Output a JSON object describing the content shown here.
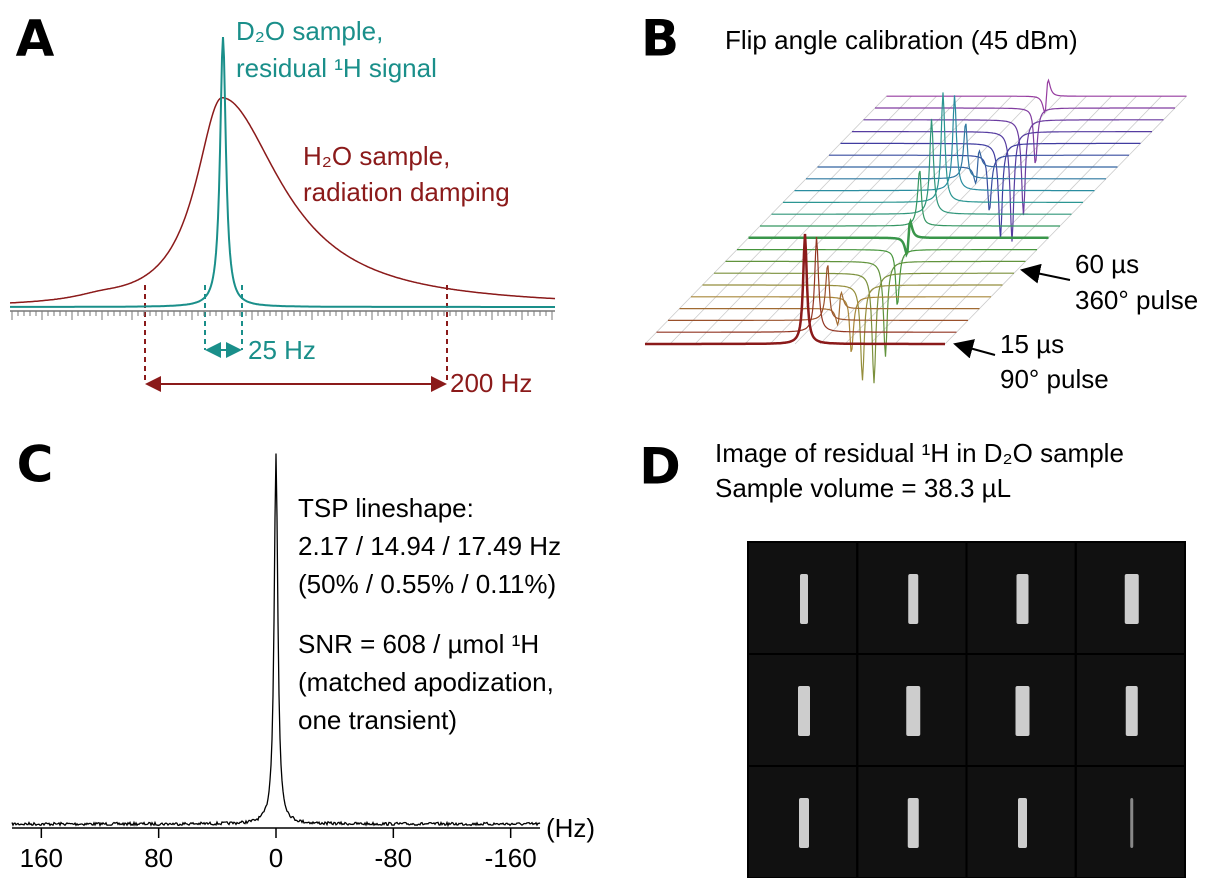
{
  "panel_a": {
    "label": "A",
    "d2o_title": [
      "D₂O sample,",
      "residual ¹H signal"
    ],
    "h2o_title": [
      "H₂O sample,",
      "radiation damping"
    ],
    "narrow_width": "25 Hz",
    "broad_width": "200 Hz"
  },
  "panel_b": {
    "label": "B",
    "title": "Flip angle calibration (45 dBm)",
    "marker_360": [
      "60 µs",
      "360° pulse"
    ],
    "marker_90": [
      "15 µs",
      "90° pulse"
    ]
  },
  "panel_c": {
    "label": "C",
    "notes": [
      "TSP lineshape:",
      "2.17 / 14.94 / 17.49 Hz",
      "(50% / 0.55% / 0.11%)",
      "SNR = 608 / µmol ¹H",
      "(matched apodization,",
      "one transient)"
    ],
    "axis": {
      "xlim": [
        180,
        -180
      ],
      "xticks": [
        160,
        80,
        0,
        -80,
        -160
      ],
      "unit": "(Hz)"
    }
  },
  "panel_d": {
    "label": "D",
    "caption": [
      "Image of residual ¹H in D₂O sample",
      "Sample volume = 38.3 µL"
    ]
  }
}
